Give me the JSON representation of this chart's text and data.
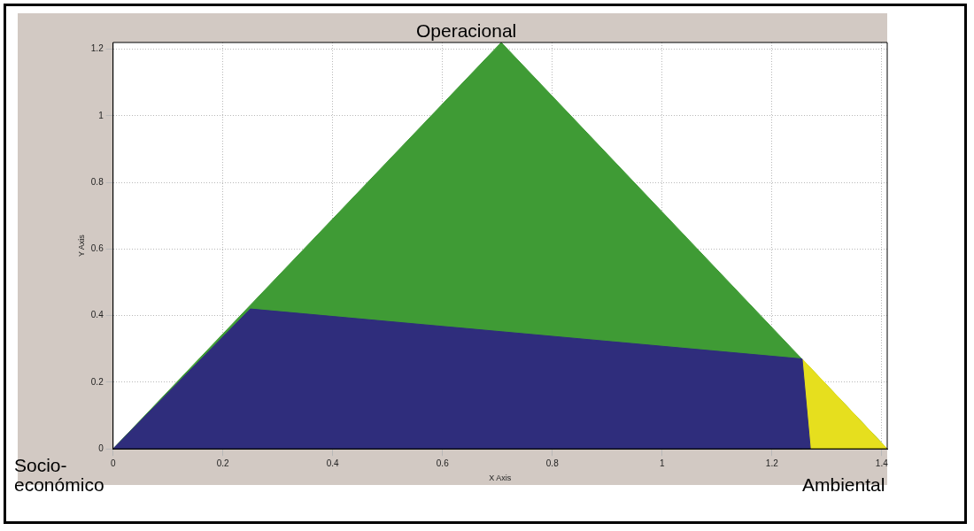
{
  "chart_data": {
    "type": "area",
    "xlabel": "X Axis",
    "ylabel": "Y Axis",
    "xlim": [
      0,
      1.41
    ],
    "ylim": [
      0,
      1.22
    ],
    "xticks": [
      0,
      0.2,
      0.4,
      0.6,
      0.8,
      1,
      1.2,
      1.4
    ],
    "yticks": [
      0,
      0.2,
      0.4,
      0.6,
      0.8,
      1,
      1.2
    ],
    "grid": true,
    "marker": "none",
    "legend": false,
    "series": [
      {
        "color": "#3f9b35",
        "x": [
          0,
          0.707,
          1.41
        ],
        "values": [
          0,
          1.22,
          0
        ]
      },
      {
        "color": "#e6df1e",
        "x": [
          1.255,
          1.41
        ],
        "values": [
          0.27,
          0
        ]
      },
      {
        "color": "#2f2d7c",
        "x": [
          0,
          0.25,
          1.255,
          1.27
        ],
        "values": [
          0,
          0.42,
          0.27,
          0
        ]
      }
    ],
    "annotations": [
      "Operacional",
      "Socio-\neconómico",
      "Ambiental"
    ]
  }
}
